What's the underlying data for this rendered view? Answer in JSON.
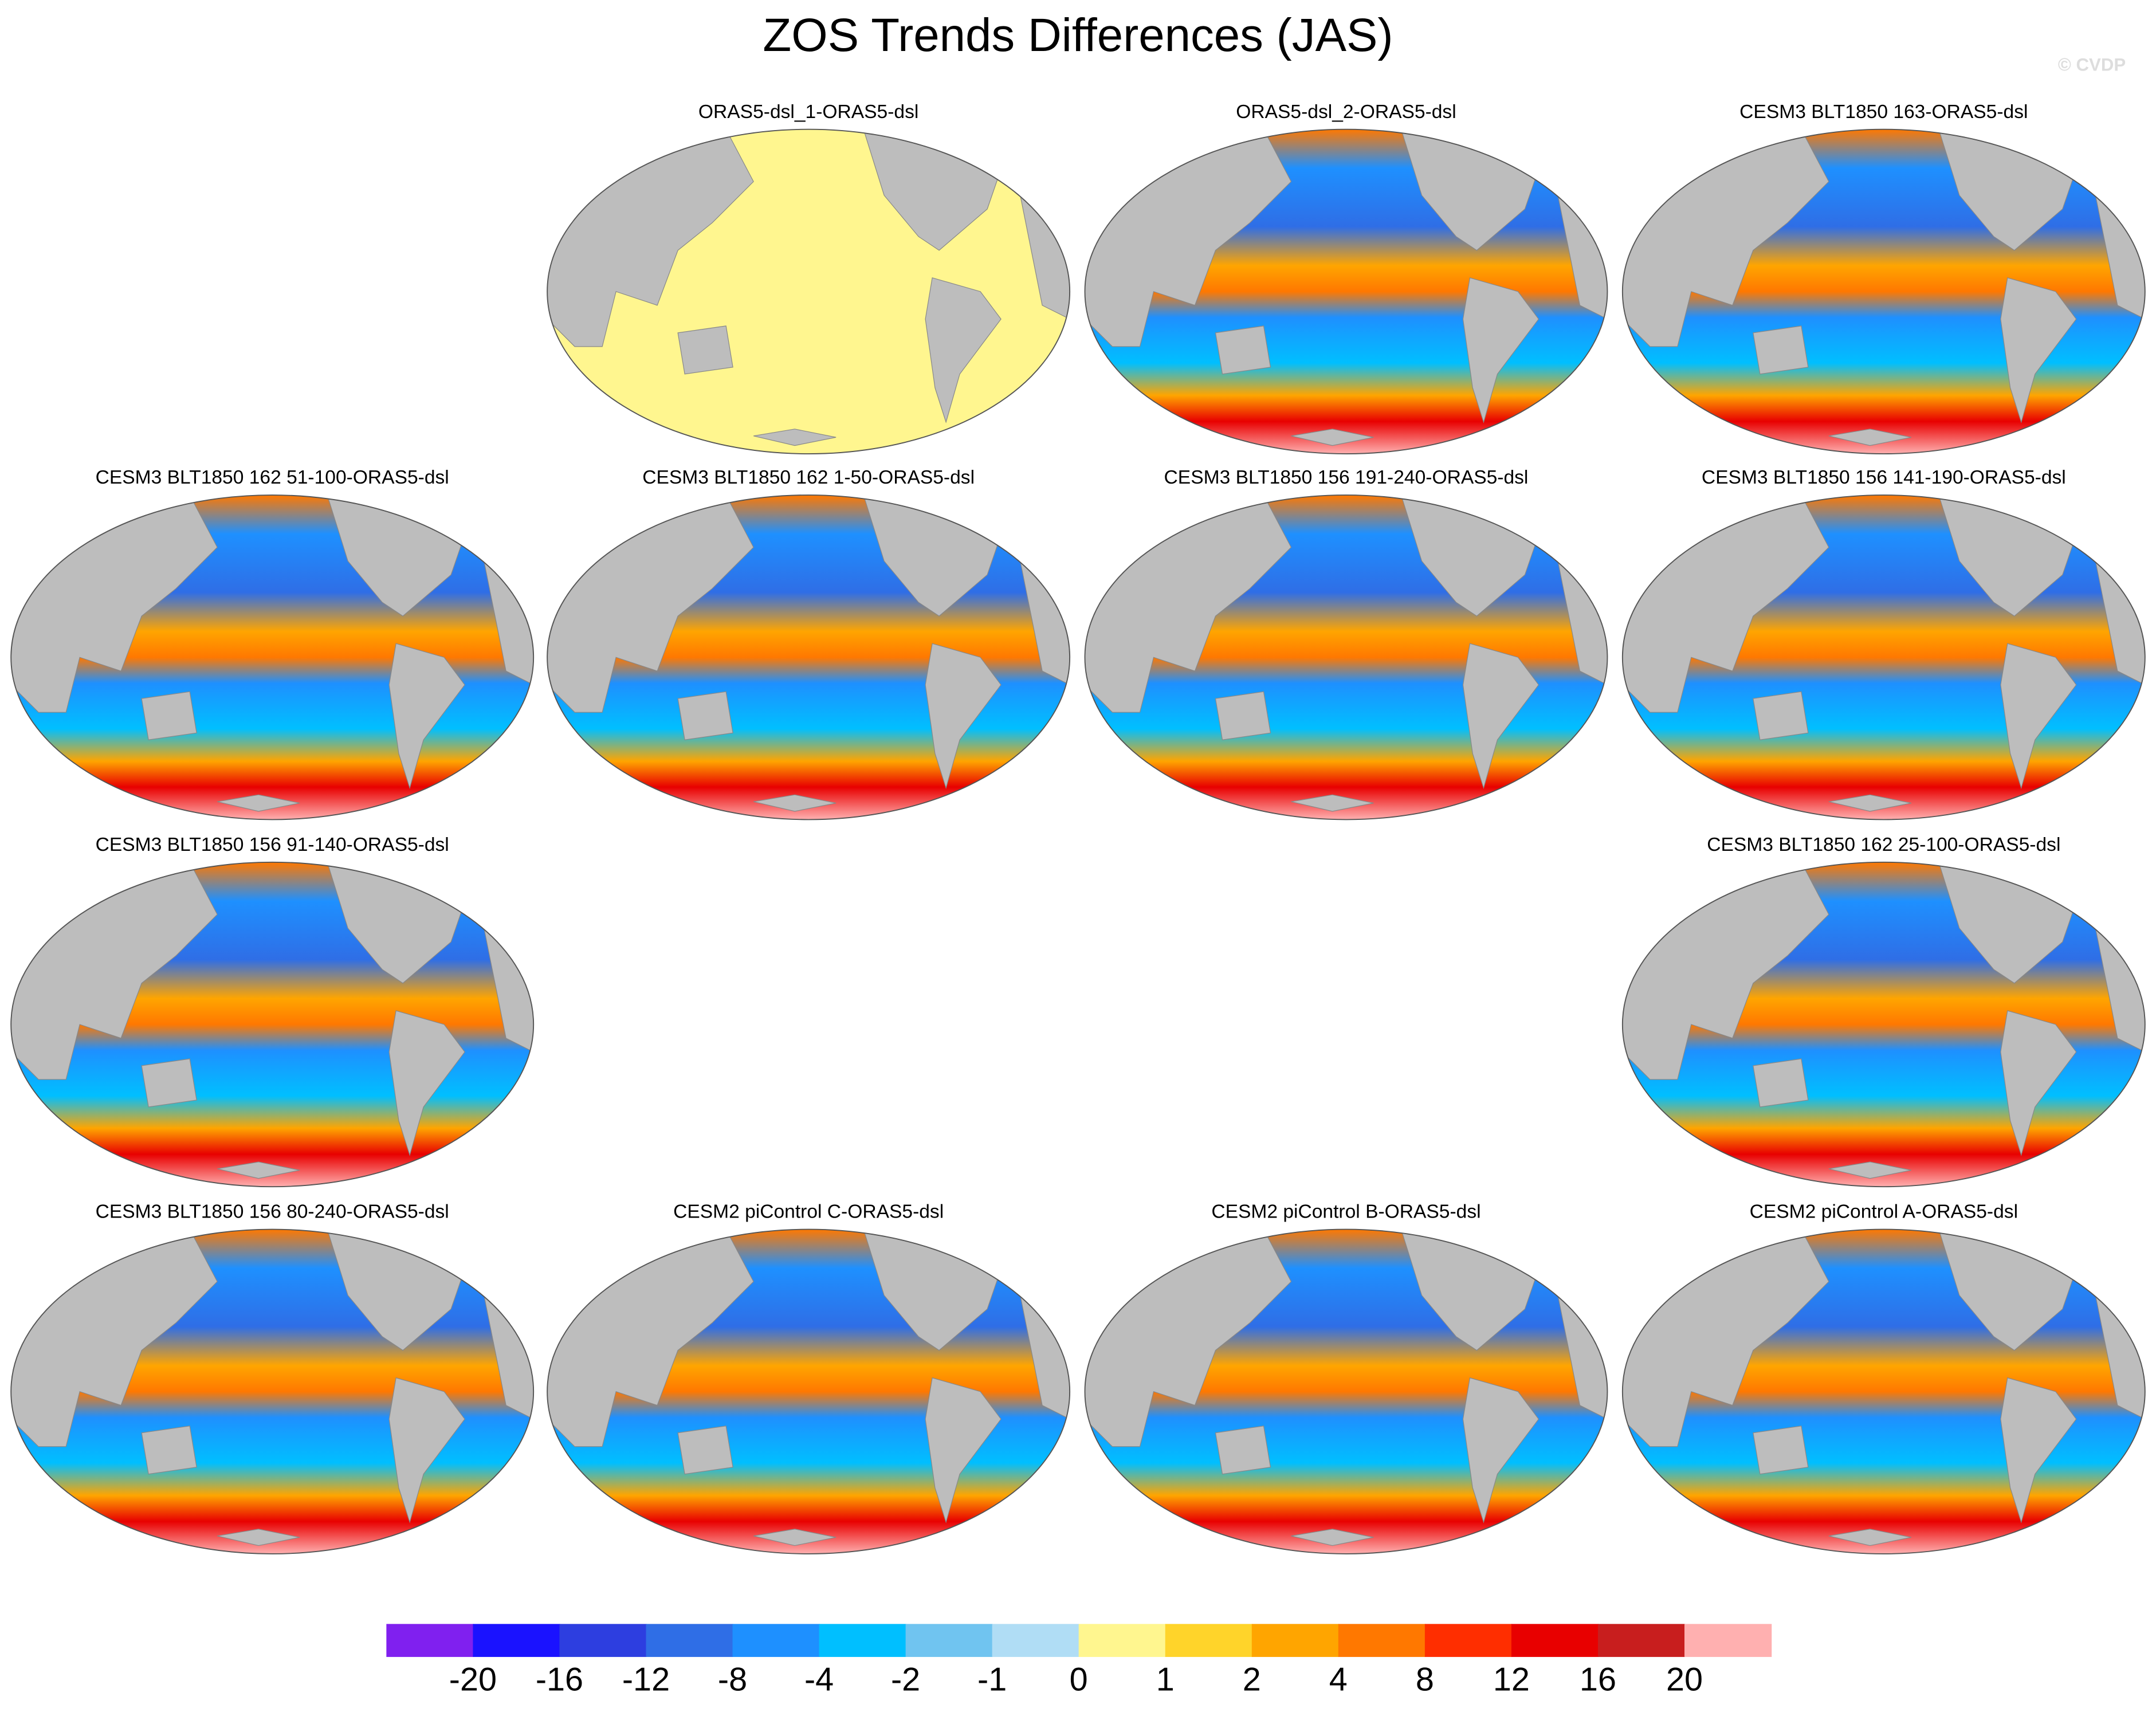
{
  "title": "ZOS Trends Differences (JAS)",
  "watermark": "© CVDP",
  "panels": [
    {
      "title": "ORAS5-dsl_1-ORAS5-dsl"
    },
    {
      "title": "ORAS5-dsl_2-ORAS5-dsl"
    },
    {
      "title": "CESM3 BLT1850 163-ORAS5-dsl"
    },
    {
      "title": "CESM3 BLT1850 162 51-100-ORAS5-dsl"
    },
    {
      "title": "CESM3 BLT1850 162 1-50-ORAS5-dsl"
    },
    {
      "title": "CESM3 BLT1850 156 191-240-ORAS5-dsl"
    },
    {
      "title": "CESM3 BLT1850 156 141-190-ORAS5-dsl"
    },
    {
      "title": "CESM3 BLT1850 156 91-140-ORAS5-dsl"
    },
    {
      "title": "CESM3 BLT1850 162 25-100-ORAS5-dsl"
    },
    {
      "title": "CESM3 BLT1850 156 80-240-ORAS5-dsl"
    },
    {
      "title": "CESM2 piControl C-ORAS5-dsl"
    },
    {
      "title": "CESM2 piControl B-ORAS5-dsl"
    },
    {
      "title": "CESM2 piControl A-ORAS5-dsl"
    }
  ],
  "colorbar": {
    "labels": [
      -20,
      -16,
      -12,
      -8,
      -4,
      -2,
      -1,
      0,
      1,
      2,
      4,
      8,
      12,
      16,
      20
    ],
    "colors": [
      "#8020ef",
      "#1a12ff",
      "#2d3ee0",
      "#2f6ee6",
      "#1e90ff",
      "#00bfff",
      "#70c4f0",
      "#b0ddf5",
      "#fff68f",
      "#ffd42a",
      "#ffa500",
      "#ff7800",
      "#ff2e00",
      "#e80000",
      "#c81e1e",
      "#ffb0b0"
    ]
  }
}
